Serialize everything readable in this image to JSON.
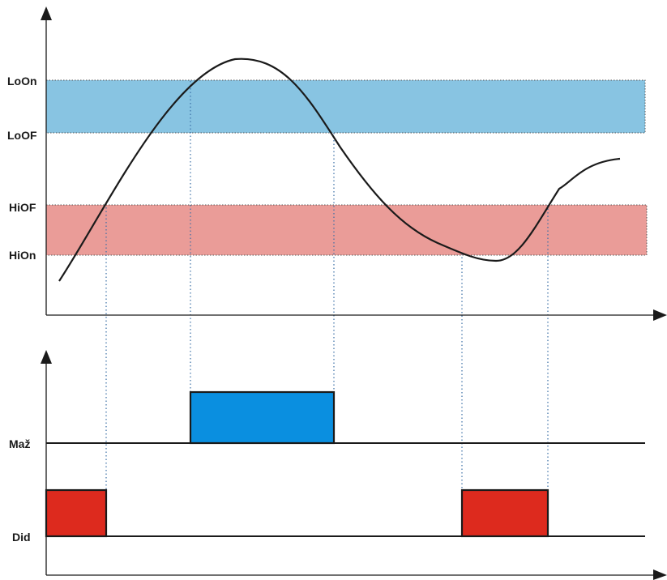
{
  "thresholds": {
    "lo_on": "LoOn",
    "lo_off": "LoOF",
    "hi_off": "HiOF",
    "hi_on": "HiOn"
  },
  "outputs": {
    "maz": "Maž",
    "did": "Did"
  },
  "colors": {
    "lo_band": "#88c4e2",
    "hi_band": "#ea9c98",
    "maz_pulse": "#0a8fe0",
    "did_pulse": "#dd2a1e",
    "curve": "#1a1a1a",
    "guide": "#3a6ea5"
  }
}
